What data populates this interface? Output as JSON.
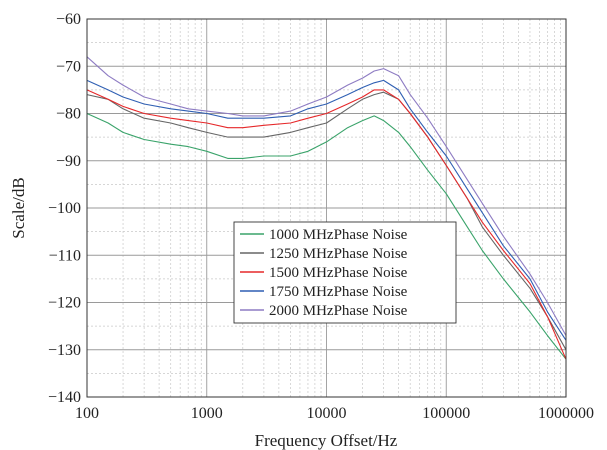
{
  "chart_data": {
    "type": "line",
    "xscale": "log",
    "xlim": [
      100,
      1000000
    ],
    "ylim": [
      -140,
      -60
    ],
    "xlabel": "Frequency Offset/Hz",
    "ylabel": "Scale/dB",
    "xticks": [
      "100",
      "1000",
      "10000",
      "100000",
      "1000000"
    ],
    "yticks": [
      "−60",
      "−70",
      "−80",
      "−90",
      "−100",
      "−110",
      "−120",
      "−130",
      "−140"
    ],
    "grid": true,
    "legend_position": "center",
    "series": [
      {
        "name": "1000 MHzPhase Noise",
        "color": "#3aa36a",
        "x": [
          100,
          150,
          200,
          300,
          500,
          700,
          1000,
          1500,
          2000,
          3000,
          5000,
          7000,
          10000,
          15000,
          20000,
          25000,
          30000,
          40000,
          50000,
          70000,
          100000,
          150000,
          200000,
          300000,
          500000,
          700000,
          1000000
        ],
        "y": [
          -80,
          -82,
          -84,
          -85.5,
          -86.5,
          -87,
          -88,
          -89.5,
          -89.5,
          -89,
          -89,
          -88,
          -86,
          -83,
          -81.5,
          -80.5,
          -81.5,
          -84,
          -87,
          -92,
          -97,
          -104,
          -109,
          -115,
          -122,
          -127,
          -132
        ]
      },
      {
        "name": "1250 MHzPhase Noise",
        "color": "#666666",
        "x": [
          100,
          150,
          200,
          300,
          500,
          700,
          1000,
          1500,
          2000,
          3000,
          5000,
          7000,
          10000,
          15000,
          20000,
          25000,
          30000,
          40000,
          50000,
          70000,
          100000,
          150000,
          200000,
          300000,
          500000,
          700000,
          1000000
        ],
        "y": [
          -76,
          -77,
          -79,
          -81,
          -82,
          -83,
          -84,
          -85,
          -85,
          -85,
          -84,
          -83,
          -82,
          -79,
          -77,
          -76,
          -75.5,
          -77,
          -80,
          -85,
          -91,
          -98,
          -104,
          -110,
          -117,
          -123,
          -130
        ]
      },
      {
        "name": "1500 MHzPhase Noise",
        "color": "#e6282a",
        "x": [
          100,
          150,
          200,
          300,
          500,
          700,
          1000,
          1500,
          2000,
          3000,
          5000,
          7000,
          10000,
          15000,
          20000,
          25000,
          30000,
          40000,
          50000,
          70000,
          100000,
          150000,
          200000,
          300000,
          500000,
          700000,
          1000000
        ],
        "y": [
          -75,
          -77,
          -78.5,
          -80,
          -81,
          -81.5,
          -82,
          -83,
          -83,
          -82.5,
          -82,
          -81,
          -80,
          -78,
          -76.5,
          -75,
          -75,
          -77,
          -80,
          -85,
          -91,
          -98,
          -103,
          -109,
          -116,
          -123,
          -132
        ]
      },
      {
        "name": "1750 MHzPhase Noise",
        "color": "#2f5fb3",
        "x": [
          100,
          150,
          200,
          300,
          500,
          700,
          1000,
          1500,
          2000,
          3000,
          5000,
          7000,
          10000,
          15000,
          20000,
          25000,
          30000,
          40000,
          50000,
          70000,
          100000,
          150000,
          200000,
          300000,
          500000,
          700000,
          1000000
        ],
        "y": [
          -73,
          -75,
          -76.5,
          -78,
          -79,
          -79.5,
          -80,
          -81,
          -81,
          -81,
          -80.5,
          -79,
          -78,
          -76,
          -74.5,
          -73.5,
          -73,
          -75,
          -79,
          -84,
          -89,
          -96,
          -101,
          -108,
          -115,
          -122,
          -128
        ]
      },
      {
        "name": "2000 MHzPhase Noise",
        "color": "#8e7cc3",
        "x": [
          100,
          150,
          200,
          300,
          500,
          700,
          1000,
          1500,
          2000,
          3000,
          5000,
          7000,
          10000,
          15000,
          20000,
          25000,
          30000,
          40000,
          50000,
          70000,
          100000,
          150000,
          200000,
          300000,
          500000,
          700000,
          1000000
        ],
        "y": [
          -68,
          -72,
          -74,
          -76.5,
          -78,
          -79,
          -79.5,
          -80,
          -80.5,
          -80.5,
          -79.5,
          -78,
          -76.5,
          -74,
          -72.5,
          -71,
          -70.5,
          -72,
          -76,
          -81,
          -87,
          -94,
          -99,
          -106,
          -114,
          -120,
          -127
        ]
      }
    ]
  }
}
